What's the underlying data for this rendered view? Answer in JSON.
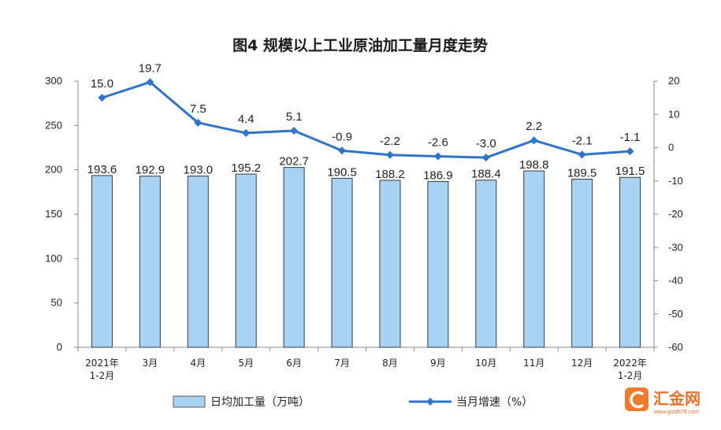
{
  "chart_data": {
    "type": "bar+line",
    "title": "图4  规模以上工业原油加工量月度走势",
    "categories": [
      [
        "2021年",
        "1-2月"
      ],
      [
        "3月"
      ],
      [
        "4月"
      ],
      [
        "5月"
      ],
      [
        "6月"
      ],
      [
        "7月"
      ],
      [
        "8月"
      ],
      [
        "9月"
      ],
      [
        "10月"
      ],
      [
        "11月"
      ],
      [
        "12月"
      ],
      [
        "2022年",
        "1-2月"
      ]
    ],
    "series": [
      {
        "name": "日均加工量（万吨）",
        "type": "bar",
        "axis": "left",
        "color": "#a9d3f5",
        "values": [
          193.6,
          192.9,
          193.0,
          195.2,
          202.7,
          190.5,
          188.2,
          186.9,
          188.4,
          198.8,
          189.5,
          191.5
        ],
        "labels": [
          "193.6",
          "192.9",
          "193.0",
          "195.2",
          "202.7",
          "190.5",
          "188.2",
          "186.9",
          "188.4",
          "198.8",
          "189.5",
          "191.5"
        ]
      },
      {
        "name": "当月增速（%）",
        "type": "line",
        "axis": "right",
        "color": "#2e75c8",
        "values": [
          15.0,
          19.7,
          7.5,
          4.4,
          5.1,
          -0.9,
          -2.2,
          -2.6,
          -3.0,
          2.2,
          -2.1,
          -1.1
        ],
        "labels": [
          "15.0",
          "19.7",
          "7.5",
          "4.4",
          "5.1",
          "-0.9",
          "-2.2",
          "-2.6",
          "-3.0",
          "2.2",
          "-2.1",
          "-1.1"
        ]
      }
    ],
    "y_left": {
      "min": 0,
      "max": 300,
      "ticks": [
        "0",
        "50",
        "100",
        "150",
        "200",
        "250",
        "300"
      ]
    },
    "y_right": {
      "min": -60,
      "max": 20,
      "ticks": [
        "-60",
        "-50",
        "-40",
        "-30",
        "-20",
        "-10",
        "0",
        "10",
        "20"
      ]
    },
    "grid": false,
    "legend_position": "bottom"
  },
  "watermark": {
    "name": "汇金网",
    "url": "www.gold678.com"
  }
}
